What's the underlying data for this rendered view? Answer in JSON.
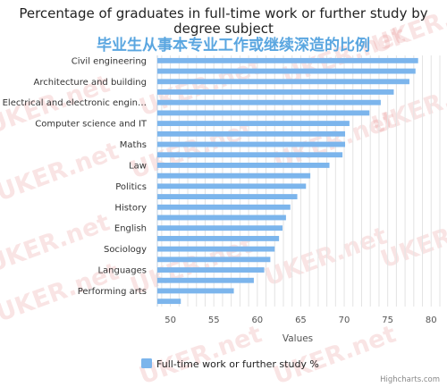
{
  "chart_data": {
    "type": "bar",
    "orientation": "horizontal",
    "title": "Percentage of graduates in full-time work or further study by degree subject",
    "subtitle": "毕业生从事本专业工作或继续深造的比例",
    "xlabel": "Values",
    "xlim": [
      48.5,
      81
    ],
    "xticks": [
      "50",
      "55",
      "60",
      "65",
      "70",
      "75",
      "80",
      "..."
    ],
    "grid": true,
    "legend_position": "bottom",
    "series": [
      {
        "name": "Full-time work or further study %",
        "color": "#7cb5ec",
        "values": [
          78.5,
          78.2,
          77.5,
          75.7,
          74.2,
          72.9,
          70.6,
          70.1,
          70.1,
          69.8,
          68.3,
          66.1,
          65.6,
          64.6,
          63.8,
          63.3,
          62.9,
          62.5,
          62.0,
          61.5,
          60.8,
          59.6,
          57.3,
          51.2
        ]
      }
    ],
    "categories": [
      "Civil engineering",
      "",
      "Architecture and building",
      "",
      "Electrical and electronic engin…",
      "",
      "Computer science and IT",
      "",
      "Maths",
      "",
      "Law",
      "",
      "Politics",
      "",
      "History",
      "",
      "English",
      "",
      "Sociology",
      "",
      "Languages",
      "",
      "Performing arts",
      ""
    ]
  },
  "watermark": "UKER.net",
  "credits": "Highcharts.com"
}
